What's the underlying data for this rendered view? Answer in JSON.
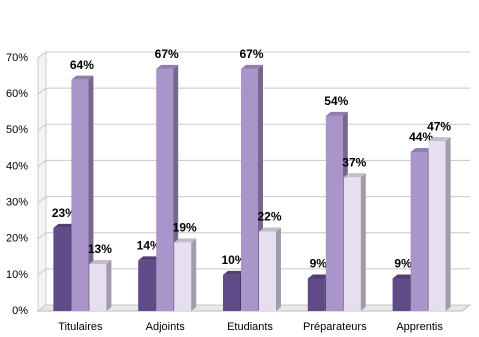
{
  "chart_data": {
    "type": "bar3d",
    "categories": [
      "Titulaires",
      "Adjoints",
      "Etudiants",
      "Préparateurs",
      "Apprentis"
    ],
    "series": [
      {
        "color": "#5f4b87",
        "values": [
          23,
          14,
          10,
          9,
          9
        ],
        "value_labels": [
          "23%",
          "14%",
          "10%",
          "9%",
          "9%"
        ]
      },
      {
        "color": "#a995c9",
        "values": [
          64,
          67,
          67,
          54,
          44
        ],
        "value_labels": [
          "64%",
          "67%",
          "67%",
          "54%",
          "44%"
        ]
      },
      {
        "color": "#e6dff0",
        "values": [
          13,
          19,
          22,
          37,
          47
        ],
        "value_labels": [
          "13%",
          "19%",
          "22%",
          "37%",
          "47%"
        ]
      }
    ],
    "ylim": [
      0,
      70
    ],
    "yticks": [
      {
        "value": 0,
        "label": "0%"
      },
      {
        "value": 10,
        "label": "10%"
      },
      {
        "value": 20,
        "label": "20%"
      },
      {
        "value": 30,
        "label": "30%"
      },
      {
        "value": 40,
        "label": "40%"
      },
      {
        "value": 50,
        "label": "50%"
      },
      {
        "value": 60,
        "label": "60%"
      },
      {
        "value": 70,
        "label": "70%"
      }
    ],
    "grid": true
  }
}
